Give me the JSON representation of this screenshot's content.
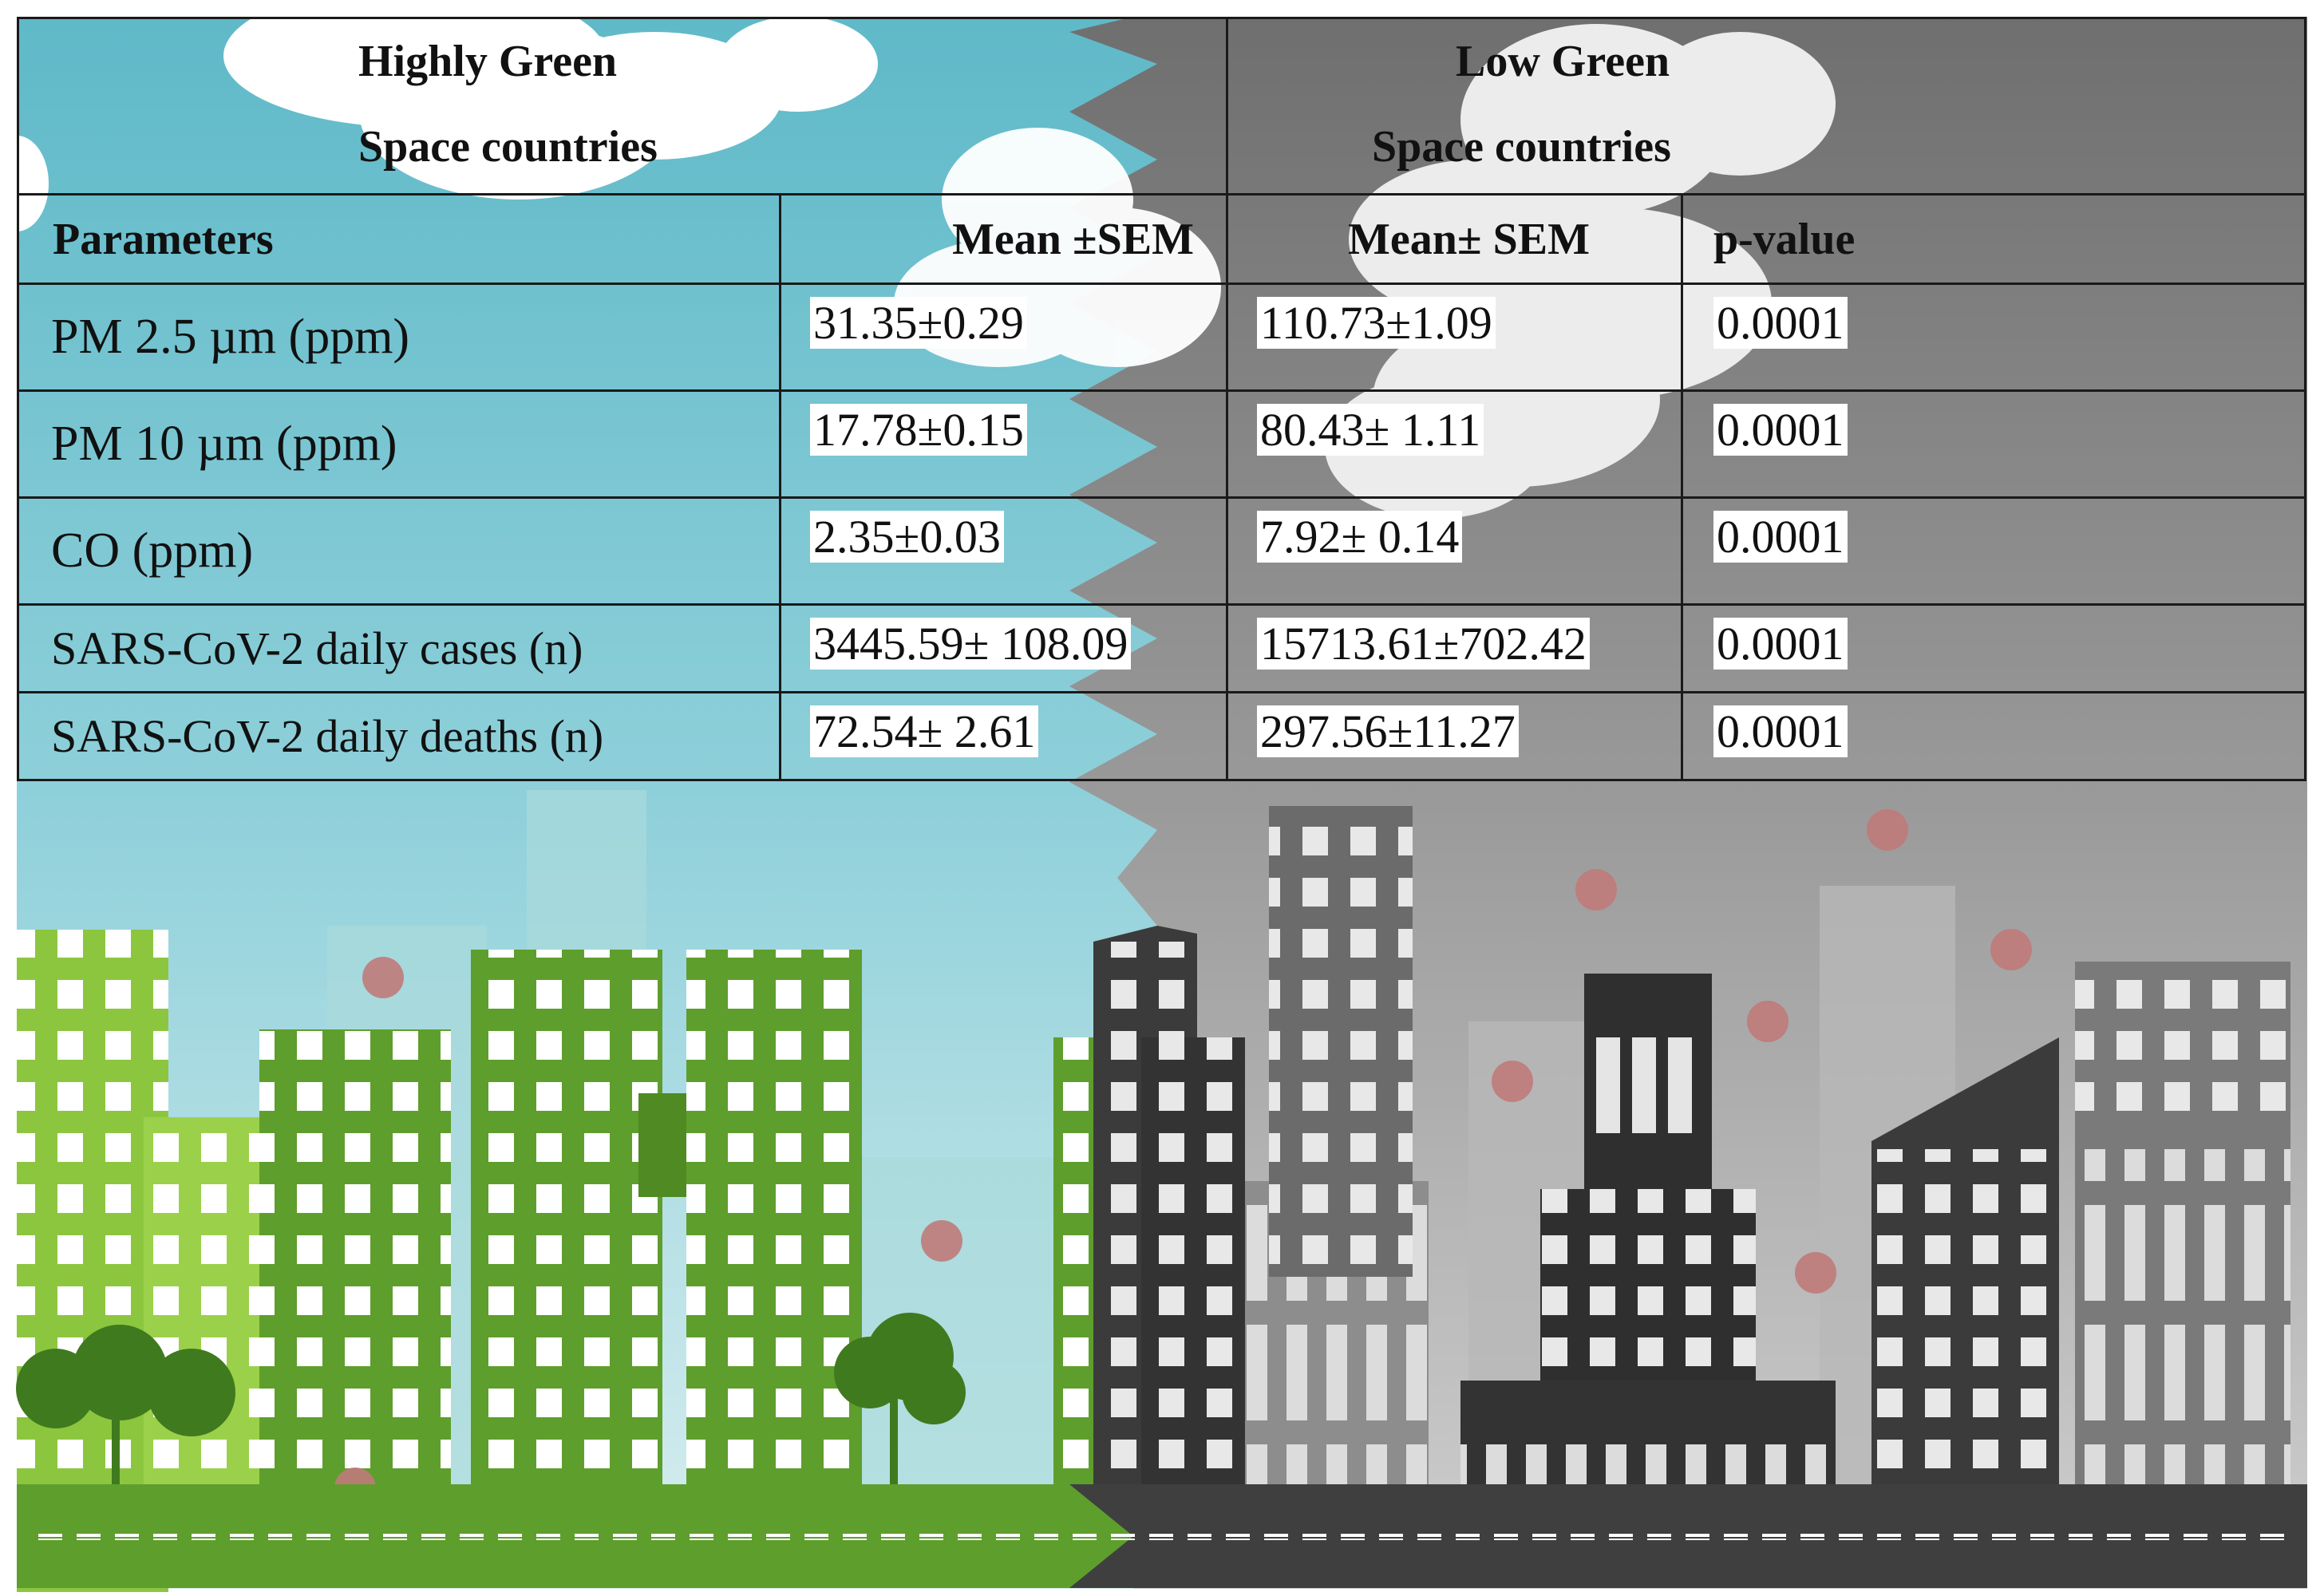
{
  "table": {
    "group_headers": {
      "highly_green_line1": "Highly Green",
      "highly_green_line2": "Space countries",
      "low_green_line1": "Low Green",
      "low_green_line2": "Space countries"
    },
    "column_headers": {
      "parameters": "Parameters",
      "mean_high": "Mean ±SEM",
      "mean_low": "Mean± SEM",
      "p_value": "p-value"
    },
    "rows": [
      {
        "parameter": "PM 2.5 µm (ppm)",
        "high": "31.35±0.29",
        "low": "110.73±1.09",
        "p": "0.0001"
      },
      {
        "parameter": "PM 10 µm (ppm)",
        "high": "17.78±0.15",
        "low": "80.43± 1.11",
        "p": "0.0001"
      },
      {
        "parameter": "CO  (ppm)",
        "high": "2.35±0.03",
        "low": "7.92± 0.14",
        "p": "0.0001"
      },
      {
        "parameter": "SARS-CoV-2 daily cases (n)",
        "high": "3445.59± 108.09",
        "low": "15713.61±702.42",
        "p": "0.0001"
      },
      {
        "parameter": "SARS-CoV-2 daily deaths (n)",
        "high": "72.54± 2.61",
        "low": "297.56±11.27",
        "p": "0.0001"
      }
    ]
  },
  "colors": {
    "sky_green_side": "#6ec0cd",
    "sky_grey_side": "#7a7a7a",
    "green_buildings": "#5e9e2c",
    "light_green_buildings": "#8cc63f",
    "dark_buildings": "#3b3b3b",
    "grey_buildings": "#8d8d8d",
    "virus": "#c07a7a"
  }
}
